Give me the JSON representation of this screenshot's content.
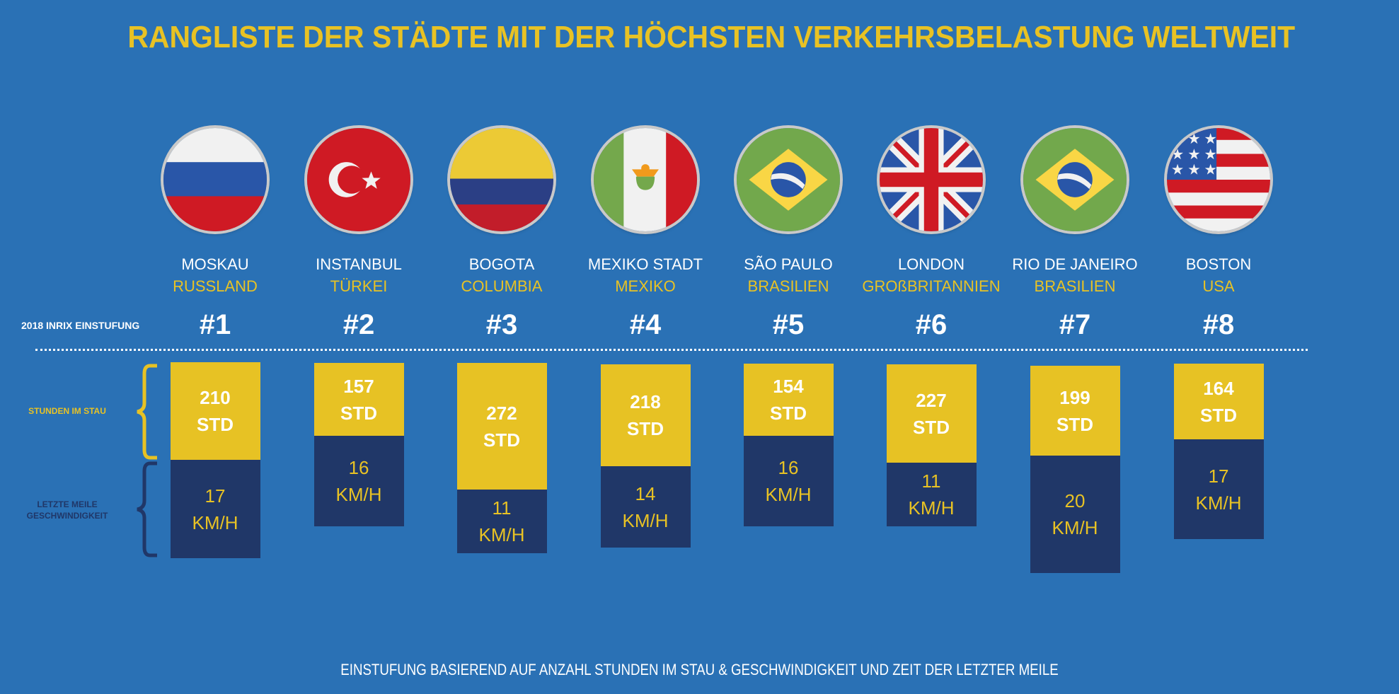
{
  "title": "RANGLISTE DER STÄDTE MIT DER HÖCHSTEN VERKEHRSBELASTUNG WELTWEIT",
  "rank_label": "2018 INRIX EINSTUFUNG",
  "legend": {
    "hours": "STUNDEN IM STAU",
    "speed_line1": "LETZTE MEILE",
    "speed_line2": "GESCHWINDIGKEIT"
  },
  "units": {
    "hours": "STD",
    "speed": "KM/H"
  },
  "footer": "EINSTUFUNG BASIEREND AUF ANZAHL STUNDEN IM STAU & GESCHWINDIGKEIT UND ZEIT DER LETZTER MEILE",
  "colors": {
    "background": "#2a71b5",
    "accent_yellow": "#e7c224",
    "navy": "#203768",
    "white": "#ffffff"
  },
  "cities": [
    {
      "city": "MOSKAU",
      "country": "RUSSLAND",
      "rank": "#1",
      "flag": "russia-flag-icon",
      "hours": "210",
      "speed": "17"
    },
    {
      "city": "INSTANBUL",
      "country": "TÜRKEI",
      "rank": "#2",
      "flag": "turkey-flag-icon",
      "hours": "157",
      "speed": "16"
    },
    {
      "city": "BOGOTA",
      "country": "COLUMBIA",
      "rank": "#3",
      "flag": "colombia-flag-icon",
      "hours": "272",
      "speed": "11"
    },
    {
      "city": "MEXIKO STADT",
      "country": "MEXIKO",
      "rank": "#4",
      "flag": "mexico-flag-icon",
      "hours": "218",
      "speed": "14"
    },
    {
      "city": "SÃO PAULO",
      "country": "BRASILIEN",
      "rank": "#5",
      "flag": "brazil-flag-icon",
      "hours": "154",
      "speed": "16"
    },
    {
      "city": "LONDON",
      "country": "GROßBRITANNIEN",
      "rank": "#6",
      "flag": "uk-flag-icon",
      "hours": "227",
      "speed": "11"
    },
    {
      "city": "RIO DE JANEIRO",
      "country": "BRASILIEN",
      "rank": "#7",
      "flag": "brazil-flag-icon",
      "hours": "199",
      "speed": "20"
    },
    {
      "city": "BOSTON",
      "country": "USA",
      "rank": "#8",
      "flag": "usa-flag-icon",
      "hours": "164",
      "speed": "17"
    }
  ],
  "chart_data": {
    "type": "bar",
    "title": "RANGLISTE DER STÄDTE MIT DER HÖCHSTEN VERKEHRSBELASTUNG WELTWEIT",
    "categories": [
      "MOSKAU",
      "INSTANBUL",
      "BOGOTA",
      "MEXIKO STADT",
      "SÃO PAULO",
      "LONDON",
      "RIO DE JANEIRO",
      "BOSTON"
    ],
    "series": [
      {
        "name": "STUNDEN IM STAU",
        "unit": "STD",
        "values": [
          210,
          157,
          272,
          218,
          154,
          227,
          199,
          164
        ]
      },
      {
        "name": "LETZTE MEILE GESCHWINDIGKEIT",
        "unit": "KM/H",
        "values": [
          17,
          16,
          11,
          14,
          16,
          11,
          20,
          17
        ]
      }
    ],
    "ranks": [
      1,
      2,
      3,
      4,
      5,
      6,
      7,
      8
    ],
    "xlabel": "",
    "ylabel": "",
    "footnote": "EINSTUFUNG BASIEREND AUF ANZAHL STUNDEN IM STAU & GESCHWINDIGKEIT UND ZEIT DER LETZTER MEILE"
  }
}
